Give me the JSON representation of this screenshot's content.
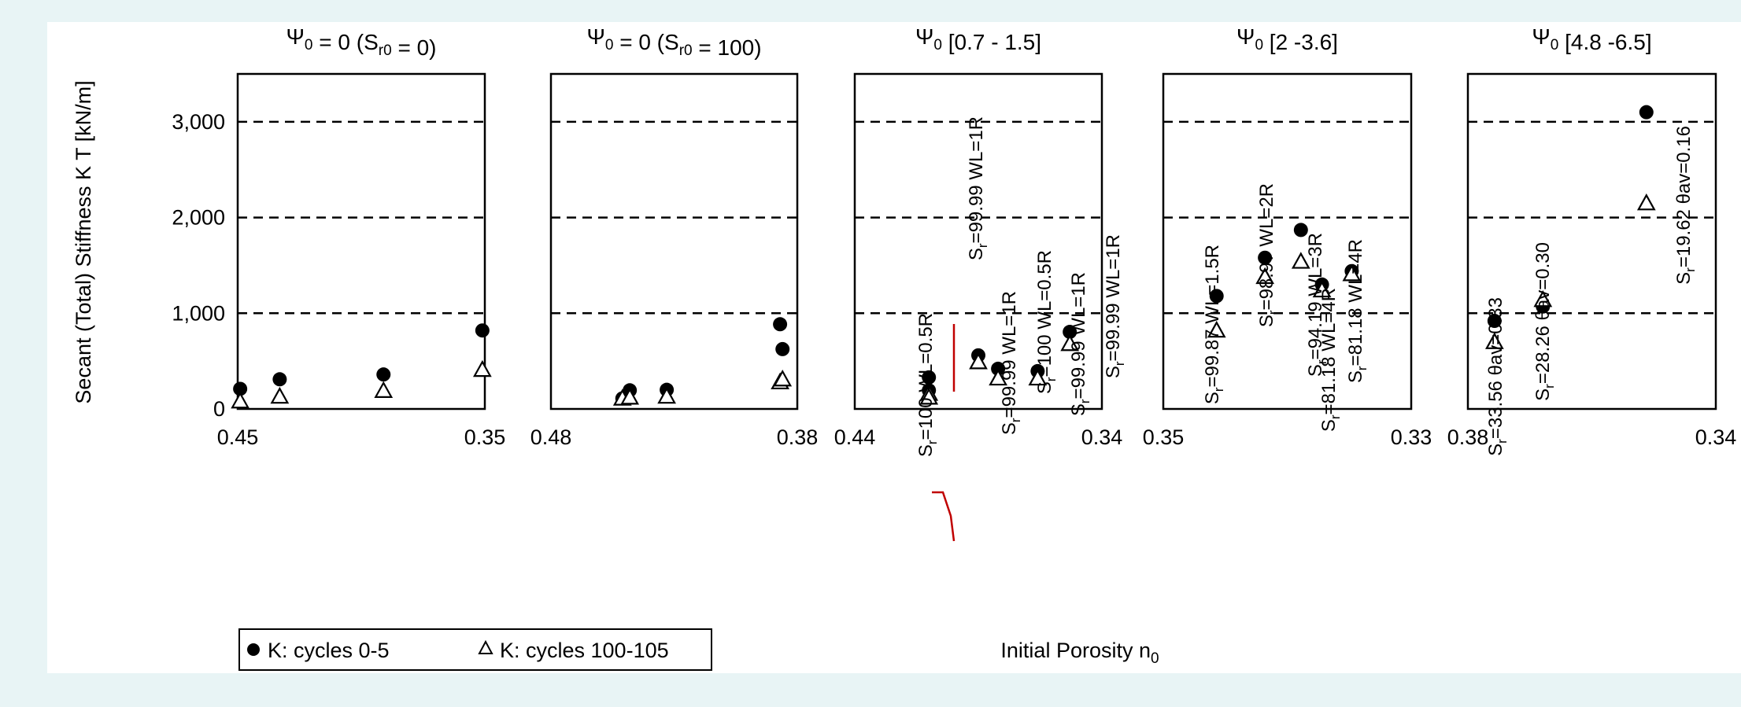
{
  "ylabel": "Secant (Total) Stiffness K T [kN/m]",
  "xlabel": "Initial Porosity n0",
  "yticks": [
    "0",
    "1,000",
    "2,000",
    "3,000"
  ],
  "legend": {
    "cycles_0_5": "K: cycles 0-5",
    "cycles_100_105": "K: cycles 100-105"
  },
  "chart_data": [
    {
      "type": "scatter",
      "title": "Ψ0 = 0 (Sr0 = 0)",
      "xlim": [
        0.45,
        0.35
      ],
      "xticks": [
        "0.45",
        "0.35"
      ],
      "ylim": [
        0,
        3500
      ],
      "series": [
        {
          "name": "K: cycles 0-5",
          "x": [
            0.449,
            0.433,
            0.391,
            0.351
          ],
          "y": [
            210,
            310,
            360,
            820
          ]
        },
        {
          "name": "K: cycles 100-105",
          "x": [
            0.449,
            0.433,
            0.391,
            0.351
          ],
          "y": [
            80,
            130,
            190,
            410
          ]
        }
      ]
    },
    {
      "type": "scatter",
      "title": "Ψ0 = 0 (Sr0 = 100)",
      "xlim": [
        0.48,
        0.38
      ],
      "xticks": [
        "0.48",
        "0.38"
      ],
      "ylim": [
        0,
        3500
      ],
      "series": [
        {
          "name": "K: cycles 0-5",
          "x": [
            0.451,
            0.448,
            0.433,
            0.387,
            0.386
          ],
          "y": [
            110,
            195,
            200,
            885,
            625
          ]
        },
        {
          "name": "K: cycles 100-105",
          "x": [
            0.451,
            0.448,
            0.433,
            0.387,
            0.386
          ],
          "y": [
            110,
            120,
            130,
            280,
            310
          ]
        }
      ]
    },
    {
      "type": "scatter",
      "title": "Ψ0 [0.7 - 1.5]",
      "xlim": [
        0.44,
        0.34
      ],
      "xticks": [
        "0.44",
        "0.34"
      ],
      "ylim": [
        0,
        3500
      ],
      "series": [
        {
          "name": "K: cycles 0-5",
          "x": [
            0.41,
            0.41,
            0.39,
            0.382,
            0.366,
            0.353
          ],
          "y": [
            330,
            195,
            560,
            420,
            395,
            805
          ]
        },
        {
          "name": "K: cycles 100-105",
          "x": [
            0.41,
            0.41,
            0.39,
            0.382,
            0.366,
            0.353
          ],
          "y": [
            160,
            120,
            490,
            320,
            320,
            680
          ]
        }
      ],
      "annotations": [
        "Sr=100 WL=0.5R",
        "Sr=99.99 WL=1R",
        "Sr=99.99 WL=1R",
        "Sr=100 WL=0.5R",
        "Sr=99.99 WL=1R",
        "Sr=99.99 WL=1R"
      ]
    },
    {
      "type": "scatter",
      "title": "Ψ0 [2 -3.6]",
      "xlim": [
        0.35,
        0.33
      ],
      "xticks": [
        "0.35",
        "0.33"
      ],
      "ylim": [
        0,
        3500
      ],
      "series": [
        {
          "name": "K: cycles 0-5",
          "x": [
            0.3457,
            0.3418,
            0.3389,
            0.3372,
            0.3348
          ],
          "y": [
            1180,
            1580,
            1870,
            1300,
            1440
          ]
        },
        {
          "name": "K: cycles 100-105",
          "x": [
            0.3457,
            0.3418,
            0.3389,
            0.3372,
            0.3348
          ],
          "y": [
            820,
            1380,
            1540,
            1240,
            1410
          ]
        }
      ],
      "annotations": [
        "Sr=99.87 WL=1.5R",
        "Sr=98.97 WL=2R",
        "Sr=94.19 WL=3R",
        "Sr=81.18 WL=4R",
        "Sr=81.18 WL=4R"
      ]
    },
    {
      "type": "scatter",
      "title": "Ψ0 [4.8 -6.5]",
      "xlim": [
        0.38,
        0.34
      ],
      "xticks": [
        "0.38",
        "0.34"
      ],
      "ylim": [
        0,
        3500
      ],
      "series": [
        {
          "name": "K: cycles 0-5",
          "x": [
            0.3757,
            0.3679,
            0.3512
          ],
          "y": [
            920,
            1070,
            3100
          ]
        },
        {
          "name": "K: cycles 100-105",
          "x": [
            0.3757,
            0.3679,
            0.3512
          ],
          "y": [
            700,
            1140,
            2150
          ]
        }
      ],
      "annotations": [
        "Sr=33.56 θav=0.33",
        "Sr=28.26 θav=0.30",
        "Sr=19.62 θav=0.16"
      ]
    }
  ]
}
